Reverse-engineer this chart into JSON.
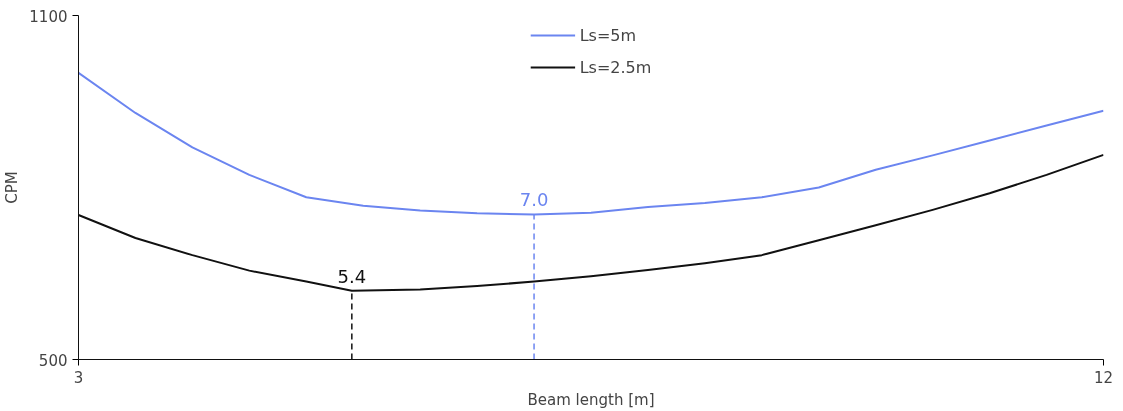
{
  "chart_data": {
    "type": "line",
    "xlabel": "Beam length [m]",
    "ylabel": "CPM",
    "xlim": [
      3,
      12
    ],
    "ylim": [
      500,
      1100
    ],
    "xticks": [
      3,
      12
    ],
    "yticks": [
      500,
      1100
    ],
    "legend": "top",
    "marker": "none",
    "line_style": "solid",
    "series": [
      {
        "name": "Ls=5m",
        "color": "#6b85f0",
        "x": [
          3,
          3.5,
          4,
          4.5,
          5,
          5.5,
          6,
          6.5,
          7,
          7.5,
          8,
          8.5,
          9,
          9.5,
          10,
          10.5,
          11,
          11.5,
          12
        ],
        "values": [
          1000,
          930,
          870,
          822,
          783,
          768,
          760,
          755,
          753,
          756,
          766,
          773,
          783,
          800,
          831,
          856,
          882,
          908,
          934
        ]
      },
      {
        "name": "Ls=2.5m",
        "color": "#111111",
        "x": [
          3,
          3.5,
          4,
          4.5,
          5,
          5.4,
          6,
          6.5,
          7,
          7.5,
          8,
          8.5,
          9,
          9.5,
          10,
          10.5,
          11,
          11.5,
          12
        ],
        "values": [
          752,
          712,
          682,
          655,
          636,
          620,
          622,
          628,
          636,
          645,
          656,
          668,
          682,
          708,
          734,
          761,
          790,
          822,
          857
        ]
      }
    ],
    "annotations": [
      {
        "text": "7.0",
        "x": 7.0,
        "y": 753
      },
      {
        "text": "5.4",
        "x": 5.4,
        "y": 620
      }
    ],
    "ref_lines": [
      {
        "axis": "x",
        "value": 7.0,
        "color": "#6b85f0",
        "line_style": "dashed"
      },
      {
        "axis": "x",
        "value": 5.4,
        "color": "#111111",
        "line_style": "dashed"
      }
    ]
  }
}
